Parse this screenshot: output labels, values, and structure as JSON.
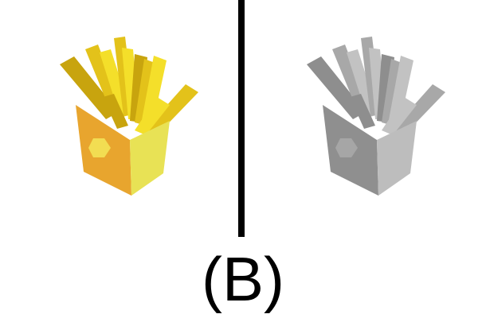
{
  "caption": "(B)",
  "panels": [
    {
      "variant": "color",
      "icon": "french-fries-icon",
      "colors": {
        "fry_light": "#f4df2a",
        "fry_mid": "#e3c21a",
        "fry_dark": "#c8a40e",
        "carton_front": "#e8a52e",
        "carton_side": "#e8e255",
        "carton_badge": "#f2dd52"
      }
    },
    {
      "variant": "grayscale",
      "icon": "french-fries-icon",
      "colors": {
        "fry_light": "#c2c2c2",
        "fry_mid": "#a8a8a8",
        "fry_dark": "#8e8e8e",
        "carton_front": "#8f8f8f",
        "carton_side": "#bdbdbd",
        "carton_badge": "#a6a6a6"
      }
    }
  ],
  "divider_color": "#000000"
}
